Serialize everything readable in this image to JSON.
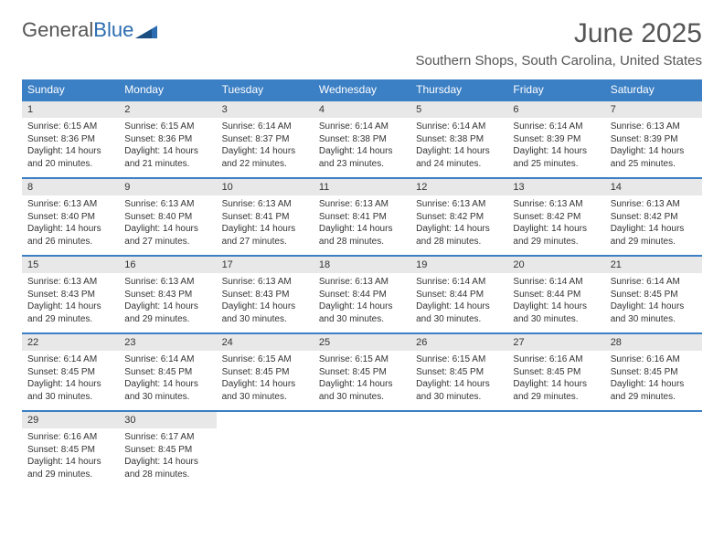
{
  "logo": {
    "part1": "General",
    "part2": "Blue"
  },
  "title": "June 2025",
  "location": "Southern Shops, South Carolina, United States",
  "colors": {
    "header_bg": "#3b7fc4",
    "header_text": "#ffffff",
    "daynum_bg": "#e8e8e8",
    "day_border": "#3b7fc4",
    "text": "#333333",
    "title_text": "#555555"
  },
  "day_headers": [
    "Sunday",
    "Monday",
    "Tuesday",
    "Wednesday",
    "Thursday",
    "Friday",
    "Saturday"
  ],
  "weeks": [
    [
      {
        "n": "1",
        "sr": "Sunrise: 6:15 AM",
        "ss": "Sunset: 8:36 PM",
        "dl": "Daylight: 14 hours and 20 minutes."
      },
      {
        "n": "2",
        "sr": "Sunrise: 6:15 AM",
        "ss": "Sunset: 8:36 PM",
        "dl": "Daylight: 14 hours and 21 minutes."
      },
      {
        "n": "3",
        "sr": "Sunrise: 6:14 AM",
        "ss": "Sunset: 8:37 PM",
        "dl": "Daylight: 14 hours and 22 minutes."
      },
      {
        "n": "4",
        "sr": "Sunrise: 6:14 AM",
        "ss": "Sunset: 8:38 PM",
        "dl": "Daylight: 14 hours and 23 minutes."
      },
      {
        "n": "5",
        "sr": "Sunrise: 6:14 AM",
        "ss": "Sunset: 8:38 PM",
        "dl": "Daylight: 14 hours and 24 minutes."
      },
      {
        "n": "6",
        "sr": "Sunrise: 6:14 AM",
        "ss": "Sunset: 8:39 PM",
        "dl": "Daylight: 14 hours and 25 minutes."
      },
      {
        "n": "7",
        "sr": "Sunrise: 6:13 AM",
        "ss": "Sunset: 8:39 PM",
        "dl": "Daylight: 14 hours and 25 minutes."
      }
    ],
    [
      {
        "n": "8",
        "sr": "Sunrise: 6:13 AM",
        "ss": "Sunset: 8:40 PM",
        "dl": "Daylight: 14 hours and 26 minutes."
      },
      {
        "n": "9",
        "sr": "Sunrise: 6:13 AM",
        "ss": "Sunset: 8:40 PM",
        "dl": "Daylight: 14 hours and 27 minutes."
      },
      {
        "n": "10",
        "sr": "Sunrise: 6:13 AM",
        "ss": "Sunset: 8:41 PM",
        "dl": "Daylight: 14 hours and 27 minutes."
      },
      {
        "n": "11",
        "sr": "Sunrise: 6:13 AM",
        "ss": "Sunset: 8:41 PM",
        "dl": "Daylight: 14 hours and 28 minutes."
      },
      {
        "n": "12",
        "sr": "Sunrise: 6:13 AM",
        "ss": "Sunset: 8:42 PM",
        "dl": "Daylight: 14 hours and 28 minutes."
      },
      {
        "n": "13",
        "sr": "Sunrise: 6:13 AM",
        "ss": "Sunset: 8:42 PM",
        "dl": "Daylight: 14 hours and 29 minutes."
      },
      {
        "n": "14",
        "sr": "Sunrise: 6:13 AM",
        "ss": "Sunset: 8:42 PM",
        "dl": "Daylight: 14 hours and 29 minutes."
      }
    ],
    [
      {
        "n": "15",
        "sr": "Sunrise: 6:13 AM",
        "ss": "Sunset: 8:43 PM",
        "dl": "Daylight: 14 hours and 29 minutes."
      },
      {
        "n": "16",
        "sr": "Sunrise: 6:13 AM",
        "ss": "Sunset: 8:43 PM",
        "dl": "Daylight: 14 hours and 29 minutes."
      },
      {
        "n": "17",
        "sr": "Sunrise: 6:13 AM",
        "ss": "Sunset: 8:43 PM",
        "dl": "Daylight: 14 hours and 30 minutes."
      },
      {
        "n": "18",
        "sr": "Sunrise: 6:13 AM",
        "ss": "Sunset: 8:44 PM",
        "dl": "Daylight: 14 hours and 30 minutes."
      },
      {
        "n": "19",
        "sr": "Sunrise: 6:14 AM",
        "ss": "Sunset: 8:44 PM",
        "dl": "Daylight: 14 hours and 30 minutes."
      },
      {
        "n": "20",
        "sr": "Sunrise: 6:14 AM",
        "ss": "Sunset: 8:44 PM",
        "dl": "Daylight: 14 hours and 30 minutes."
      },
      {
        "n": "21",
        "sr": "Sunrise: 6:14 AM",
        "ss": "Sunset: 8:45 PM",
        "dl": "Daylight: 14 hours and 30 minutes."
      }
    ],
    [
      {
        "n": "22",
        "sr": "Sunrise: 6:14 AM",
        "ss": "Sunset: 8:45 PM",
        "dl": "Daylight: 14 hours and 30 minutes."
      },
      {
        "n": "23",
        "sr": "Sunrise: 6:14 AM",
        "ss": "Sunset: 8:45 PM",
        "dl": "Daylight: 14 hours and 30 minutes."
      },
      {
        "n": "24",
        "sr": "Sunrise: 6:15 AM",
        "ss": "Sunset: 8:45 PM",
        "dl": "Daylight: 14 hours and 30 minutes."
      },
      {
        "n": "25",
        "sr": "Sunrise: 6:15 AM",
        "ss": "Sunset: 8:45 PM",
        "dl": "Daylight: 14 hours and 30 minutes."
      },
      {
        "n": "26",
        "sr": "Sunrise: 6:15 AM",
        "ss": "Sunset: 8:45 PM",
        "dl": "Daylight: 14 hours and 30 minutes."
      },
      {
        "n": "27",
        "sr": "Sunrise: 6:16 AM",
        "ss": "Sunset: 8:45 PM",
        "dl": "Daylight: 14 hours and 29 minutes."
      },
      {
        "n": "28",
        "sr": "Sunrise: 6:16 AM",
        "ss": "Sunset: 8:45 PM",
        "dl": "Daylight: 14 hours and 29 minutes."
      }
    ],
    [
      {
        "n": "29",
        "sr": "Sunrise: 6:16 AM",
        "ss": "Sunset: 8:45 PM",
        "dl": "Daylight: 14 hours and 29 minutes."
      },
      {
        "n": "30",
        "sr": "Sunrise: 6:17 AM",
        "ss": "Sunset: 8:45 PM",
        "dl": "Daylight: 14 hours and 28 minutes."
      },
      null,
      null,
      null,
      null,
      null
    ]
  ]
}
